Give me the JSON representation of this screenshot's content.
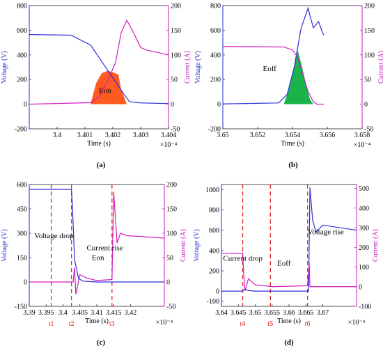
{
  "colors": {
    "voltage": "#2b2bd9",
    "current": "#d11bc4",
    "eon_fill": "#ff5a1f",
    "eoff_fill": "#19b34a",
    "marker": "#e0201b",
    "axis_left": "#1f2fd0",
    "axis_right": "#c418b8"
  },
  "chart_data": [
    {
      "type": "line",
      "caption": "(a)",
      "xlabel": "Time (s)",
      "x_exponent": "×10⁻⁴",
      "ylabel_left": "Voltage (V)",
      "ylabel_right": "Current (A)",
      "xlim": [
        3.399,
        3.404
      ],
      "ylim_left": [
        -200,
        800
      ],
      "ylim_right": [
        -50,
        200
      ],
      "x_ticks": [
        "3.4",
        "3.401",
        "3.402",
        "3.403",
        "3.404"
      ],
      "y_ticks_left": [
        "800",
        "600",
        "400",
        "200",
        "0",
        "-200"
      ],
      "y_ticks_right": [
        "200",
        "150",
        "100",
        "50",
        "0",
        "-50"
      ],
      "annotations": [
        {
          "text": "Eon",
          "x": 3.4015,
          "y": 90
        }
      ],
      "fill": {
        "name": "Eon",
        "x": [
          3.4012,
          3.4014,
          3.4016,
          3.4018,
          3.402,
          3.4022,
          3.4023,
          3.4025
        ],
        "y": [
          0,
          170,
          250,
          270,
          260,
          240,
          120,
          0
        ]
      },
      "series": [
        {
          "axis": "left",
          "x": [
            3.399,
            3.4005,
            3.4012,
            3.4015,
            3.4018,
            3.4021,
            3.4024,
            3.4026,
            3.403,
            3.404
          ],
          "y": [
            565,
            560,
            480,
            380,
            280,
            180,
            80,
            20,
            10,
            5
          ]
        },
        {
          "axis": "right",
          "x": [
            3.399,
            3.4012,
            3.4015,
            3.4018,
            3.4021,
            3.4023,
            3.4025,
            3.4027,
            3.403,
            3.4032,
            3.404
          ],
          "y": [
            0,
            3,
            15,
            45,
            85,
            145,
            170,
            150,
            115,
            110,
            100
          ]
        }
      ]
    },
    {
      "type": "line",
      "caption": "(b)",
      "xlabel": "Time (s)",
      "x_exponent": "×10⁻⁴",
      "ylabel_left": "Voltage (V)",
      "ylabel_right": "Current (A)",
      "xlim": [
        3.65,
        3.658
      ],
      "ylim_left": [
        -200,
        800
      ],
      "ylim_right": [
        -50,
        200
      ],
      "x_ticks": [
        "3.65",
        "3.652",
        "3.654",
        "3.656",
        "3.658"
      ],
      "y_ticks_left": [
        "800",
        "600",
        "400",
        "200",
        "0",
        "-200"
      ],
      "y_ticks_right": [
        "200",
        "150",
        "100",
        "50",
        "0",
        "-50"
      ],
      "annotations": [
        {
          "text": "Eoff",
          "x": 3.6523,
          "y": 270
        }
      ],
      "fill": {
        "name": "Eoff",
        "x": [
          3.6535,
          3.6538,
          3.6541,
          3.6543,
          3.6545,
          3.6548,
          3.655,
          3.6552
        ],
        "y": [
          0,
          120,
          300,
          440,
          330,
          150,
          40,
          0
        ]
      },
      "series": [
        {
          "axis": "left",
          "x": [
            3.65,
            3.6532,
            3.6537,
            3.6541,
            3.6545,
            3.6549,
            3.655,
            3.6552,
            3.6555,
            3.6557,
            3.6558
          ],
          "y": [
            2,
            10,
            80,
            300,
            620,
            780,
            720,
            620,
            670,
            590,
            560
          ]
        },
        {
          "axis": "right",
          "x": [
            3.65,
            3.6535,
            3.654,
            3.6543,
            3.6546,
            3.6549,
            3.6552,
            3.6554,
            3.6558
          ],
          "y": [
            117,
            116,
            110,
            95,
            60,
            25,
            5,
            0,
            0
          ]
        }
      ]
    },
    {
      "type": "line",
      "caption": "(c)",
      "xlabel": "Time (s)",
      "x_exponent": "×10⁻⁴",
      "ylabel_left": "Voltage (V)",
      "ylabel_right": "Current (A)",
      "xlim": [
        3.39,
        3.43
      ],
      "ylim_left": [
        -150,
        600
      ],
      "ylim_right": [
        -50,
        200
      ],
      "x_ticks": [
        "3.39",
        "3.395",
        "3.4",
        "3.405",
        "3.41",
        "3.415",
        "3.42"
      ],
      "y_ticks_left": [
        "600",
        "450",
        "300",
        "150",
        "0",
        "-150"
      ],
      "y_ticks_right": [
        "200",
        "150",
        "100",
        "50",
        "0",
        "-50"
      ],
      "markers": [
        {
          "label": "t1",
          "x": 3.3965
        },
        {
          "label": "t2",
          "x": 3.4025
        },
        {
          "label": "t3",
          "x": 3.4145
        }
      ],
      "annotations": [
        {
          "text": "Voltage drop",
          "x": 3.3915,
          "y": 270
        },
        {
          "text": "Eon",
          "x": 3.4085,
          "y": 135
        },
        {
          "text": "Current rise",
          "x": 3.407,
          "y": 195
        }
      ],
      "series": [
        {
          "axis": "left",
          "x": [
            3.39,
            3.4025,
            3.4028,
            3.4034,
            3.4046,
            3.406,
            3.41,
            3.415,
            3.42,
            3.43
          ],
          "y": [
            570,
            570,
            460,
            140,
            20,
            5,
            0,
            0,
            0,
            0
          ]
        },
        {
          "axis": "right",
          "x": [
            3.39,
            3.403,
            3.4034,
            3.4038,
            3.405,
            3.407,
            3.41,
            3.4145,
            3.415,
            3.416,
            3.417,
            3.419,
            3.43
          ],
          "y": [
            0,
            0,
            30,
            -25,
            15,
            8,
            3,
            5,
            185,
            80,
            100,
            95,
            90
          ]
        }
      ]
    },
    {
      "type": "line",
      "caption": "(d)",
      "xlabel": "Time (s)",
      "x_exponent": "×10⁻⁴",
      "ylabel_left": "Voltage (V)",
      "ylabel_right": "Current (A)",
      "xlim": [
        3.64,
        3.68
      ],
      "ylim_left": [
        -150,
        1050
      ],
      "ylim_right": [
        -100,
        520
      ],
      "x_ticks": [
        "3.64",
        "3.645",
        "3.65",
        "3.655",
        "3.66",
        "3.665",
        "3.67"
      ],
      "y_ticks_left": [
        "1000",
        "800",
        "600",
        "400",
        "200",
        "0",
        "-100"
      ],
      "y_ticks_right": [
        "500",
        "400",
        "300",
        "200",
        "100",
        "0",
        "-100"
      ],
      "markers": [
        {
          "label": "t4",
          "x": 3.6463
        },
        {
          "label": "t5",
          "x": 3.6545
        },
        {
          "label": "t6",
          "x": 3.6655
        }
      ],
      "annotations": [
        {
          "text": "Current drop",
          "x": 3.6405,
          "y": 300
        },
        {
          "text": "Eoff",
          "x": 3.6565,
          "y": 250
        },
        {
          "text": "Voltage rise",
          "x": 3.6655,
          "y": 560
        }
      ],
      "series": [
        {
          "axis": "left",
          "x": [
            3.64,
            3.6463,
            3.6468,
            3.648,
            3.65,
            3.655,
            3.665,
            3.6658,
            3.6662,
            3.667,
            3.668,
            3.67,
            3.68
          ],
          "y": [
            0,
            0,
            20,
            5,
            0,
            0,
            0,
            0,
            1020,
            700,
            580,
            650,
            600
          ]
        },
        {
          "axis": "right",
          "x": [
            3.64,
            3.6463,
            3.6466,
            3.647,
            3.648,
            3.65,
            3.655,
            3.6655,
            3.666,
            3.6662,
            3.667,
            3.68
          ],
          "y": [
            170,
            170,
            60,
            -20,
            40,
            10,
            0,
            5,
            120,
            0,
            0,
            0
          ]
        }
      ]
    }
  ]
}
